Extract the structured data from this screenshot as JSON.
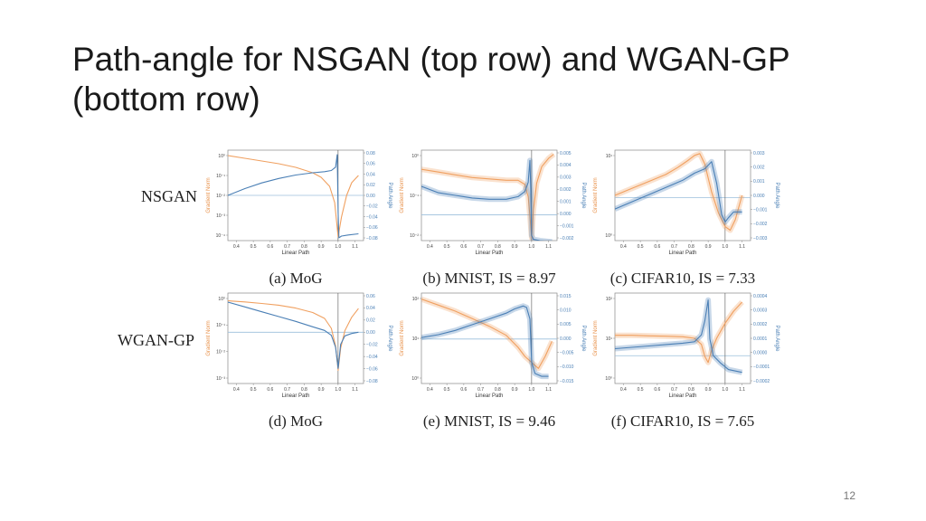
{
  "slide": {
    "title": "Path-angle for NSGAN (top row) and WGAN-GP (bottom row)",
    "page_number": "12"
  },
  "row_labels": [
    "NSGAN",
    "WGAN-GP"
  ],
  "colors": {
    "gradient_norm": "#f0a060",
    "path_angle": "#4a7fb5",
    "reference_line": "#9bbfdc"
  },
  "chart_data": [
    {
      "type": "line",
      "caption": "(a) MoG",
      "xlabel": "Linear Path",
      "ylabel_left": "Gradient Norm",
      "ylabel_right": "Path Angle",
      "xticks": [
        "0.4",
        "0.5",
        "0.6",
        "0.7",
        "0.8",
        "0.9",
        "1.0",
        "1.1"
      ],
      "yticks_left": [
        "10⁰",
        "10⁻¹",
        "10⁻²",
        "10⁻³",
        "10⁻⁴"
      ],
      "yticks_right": [
        "0.08",
        "0.06",
        "0.04",
        "0.02",
        "0.00",
        "−0.02",
        "−0.04",
        "−0.06",
        "−0.08"
      ],
      "xlim": [
        0.35,
        1.15
      ],
      "ylim_left": [
        -4.5,
        0.5
      ],
      "ylim_right": [
        -0.08,
        0.08
      ],
      "vline": 1.0,
      "hline_right": 0.0,
      "band": false,
      "series": [
        {
          "axis": "left",
          "x": [
            0.35,
            0.45,
            0.55,
            0.65,
            0.75,
            0.85,
            0.9,
            0.95,
            0.98,
            1.0,
            1.02,
            1.05,
            1.08,
            1.12
          ],
          "y": [
            0.2,
            0.05,
            -0.1,
            -0.25,
            -0.45,
            -0.75,
            -1.0,
            -1.5,
            -2.4,
            -4.3,
            -3.2,
            -2.0,
            -1.3,
            -0.9
          ]
        },
        {
          "axis": "right",
          "x": [
            0.35,
            0.45,
            0.55,
            0.65,
            0.75,
            0.85,
            0.92,
            0.96,
            0.985,
            0.995,
            1.0,
            1.005,
            1.02,
            1.06,
            1.12
          ],
          "y": [
            0.0,
            0.012,
            0.022,
            0.03,
            0.036,
            0.04,
            0.042,
            0.044,
            0.05,
            0.072,
            -0.03,
            -0.075,
            -0.072,
            -0.07,
            -0.068
          ]
        }
      ]
    },
    {
      "type": "line",
      "caption": "(b) MNIST, IS = 8.97",
      "xlabel": "Linear Path",
      "ylabel_left": "Gradient Norm",
      "ylabel_right": "Path Angle",
      "xticks": [
        "0.4",
        "0.5",
        "0.6",
        "0.7",
        "0.8",
        "0.9",
        "1.0",
        "1.1"
      ],
      "yticks_left": [
        "10⁰",
        "10⁻¹",
        "10⁻²"
      ],
      "yticks_right": [
        "0.005",
        "0.004",
        "0.003",
        "0.002",
        "0.001",
        "0.000",
        "−0.001",
        "−0.002"
      ],
      "xlim": [
        0.35,
        1.15
      ],
      "ylim_left": [
        -2.5,
        0.8
      ],
      "ylim_right": [
        -0.002,
        0.005
      ],
      "vline": 1.0,
      "hline_right": 0.0,
      "band": true,
      "series": [
        {
          "axis": "left",
          "x": [
            0.35,
            0.45,
            0.55,
            0.65,
            0.75,
            0.85,
            0.92,
            0.96,
            0.98,
            0.99,
            1.0,
            1.01,
            1.03,
            1.06,
            1.1,
            1.13
          ],
          "y": [
            0.1,
            0.0,
            -0.1,
            -0.2,
            -0.25,
            -0.3,
            -0.3,
            -0.45,
            -0.9,
            -1.6,
            -2.4,
            -1.4,
            -0.4,
            0.2,
            0.5,
            0.65
          ]
        },
        {
          "axis": "right",
          "x": [
            0.35,
            0.45,
            0.55,
            0.65,
            0.75,
            0.85,
            0.92,
            0.96,
            0.98,
            0.99,
            0.995,
            1.0,
            1.01,
            1.05,
            1.12
          ],
          "y": [
            0.0022,
            0.0017,
            0.0015,
            0.0013,
            0.0012,
            0.0012,
            0.0014,
            0.0018,
            0.0025,
            0.0042,
            0.002,
            -0.0016,
            -0.0019,
            -0.002,
            -0.0021
          ]
        }
      ]
    },
    {
      "type": "line",
      "caption": "(c) CIFAR10, IS = 7.33",
      "xlabel": "Linear Path",
      "ylabel_left": "Gradient Norm",
      "ylabel_right": "Path Angle",
      "xticks": [
        "0.4",
        "0.5",
        "0.6",
        "0.7",
        "0.8",
        "0.9",
        "1.0",
        "1.1"
      ],
      "yticks_left": [
        "10¹",
        "10⁰"
      ],
      "yticks_right": [
        "0.003",
        "0.002",
        "0.001",
        "0.000",
        "−0.001",
        "−0.002",
        "−0.003"
      ],
      "xlim": [
        0.35,
        1.15
      ],
      "ylim_left": [
        -1.2,
        1.4
      ],
      "ylim_right": [
        -0.003,
        0.0033
      ],
      "vline": 1.0,
      "hline_right": 0.0,
      "band": true,
      "series": [
        {
          "axis": "left",
          "x": [
            0.35,
            0.45,
            0.55,
            0.65,
            0.72,
            0.78,
            0.82,
            0.85,
            0.88,
            0.92,
            0.96,
            1.0,
            1.03,
            1.06,
            1.1
          ],
          "y": [
            0.1,
            0.3,
            0.5,
            0.7,
            0.9,
            1.1,
            1.25,
            1.3,
            1.0,
            0.2,
            -0.4,
            -0.8,
            -0.9,
            -0.6,
            0.1
          ]
        },
        {
          "axis": "right",
          "x": [
            0.35,
            0.45,
            0.55,
            0.65,
            0.75,
            0.82,
            0.88,
            0.92,
            0.95,
            0.98,
            1.0,
            1.02,
            1.05,
            1.1
          ],
          "y": [
            -0.0008,
            -0.0003,
            0.0002,
            0.0007,
            0.0012,
            0.0017,
            0.002,
            0.0025,
            0.001,
            -0.0012,
            -0.0017,
            -0.0014,
            -0.001,
            -0.001
          ]
        }
      ]
    },
    {
      "type": "line",
      "caption": "(d) MoG",
      "xlabel": "Linear Path",
      "ylabel_left": "Gradient Norm",
      "ylabel_right": "Path Angle",
      "xticks": [
        "0.4",
        "0.5",
        "0.6",
        "0.7",
        "0.8",
        "0.9",
        "1.0",
        "1.1"
      ],
      "yticks_left": [
        "10⁰",
        "10⁻¹",
        "10⁻²",
        "10⁻³"
      ],
      "yticks_right": [
        "0.06",
        "0.04",
        "0.02",
        "0.00",
        "−0.02",
        "−0.04",
        "−0.06",
        "−0.08"
      ],
      "xlim": [
        0.35,
        1.15
      ],
      "ylim_left": [
        -3.6,
        0.5
      ],
      "ylim_right": [
        -0.085,
        0.065
      ],
      "vline": 1.0,
      "hline_right": 0.0,
      "band": false,
      "series": [
        {
          "axis": "left",
          "x": [
            0.35,
            0.45,
            0.55,
            0.65,
            0.75,
            0.85,
            0.92,
            0.96,
            0.985,
            1.0,
            1.015,
            1.04,
            1.08,
            1.12
          ],
          "y": [
            0.15,
            0.1,
            0.03,
            -0.05,
            -0.18,
            -0.38,
            -0.65,
            -1.1,
            -1.9,
            -3.0,
            -2.0,
            -1.2,
            -0.6,
            -0.2
          ]
        },
        {
          "axis": "right",
          "x": [
            0.35,
            0.45,
            0.55,
            0.65,
            0.75,
            0.85,
            0.92,
            0.96,
            0.985,
            1.0,
            1.015,
            1.04,
            1.08,
            1.12
          ],
          "y": [
            0.05,
            0.042,
            0.034,
            0.026,
            0.018,
            0.009,
            0.003,
            -0.005,
            -0.025,
            -0.06,
            -0.02,
            -0.006,
            -0.002,
            0.0
          ]
        }
      ]
    },
    {
      "type": "line",
      "caption": "(e) MNIST, IS = 9.46",
      "xlabel": "Linear Path",
      "ylabel_left": "Gradient Norm",
      "ylabel_right": "Path Angle",
      "xticks": [
        "0.4",
        "0.5",
        "0.6",
        "0.7",
        "0.8",
        "0.9",
        "1.0",
        "1.1"
      ],
      "yticks_left": [
        "10²",
        "10¹",
        "10⁰"
      ],
      "yticks_right": [
        "0.015",
        "0.010",
        "0.005",
        "0.000",
        "−0.005",
        "−0.010",
        "−0.015"
      ],
      "xlim": [
        0.35,
        1.15
      ],
      "ylim_left": [
        -0.6,
        2.4
      ],
      "ylim_right": [
        -0.0155,
        0.016
      ],
      "vline": 1.0,
      "hline_right": 0.0,
      "band": true,
      "series": [
        {
          "axis": "left",
          "x": [
            0.35,
            0.45,
            0.55,
            0.65,
            0.75,
            0.85,
            0.92,
            0.96,
            1.0,
            1.04,
            1.08,
            1.12
          ],
          "y": [
            2.2,
            2.0,
            1.8,
            1.55,
            1.3,
            1.0,
            0.6,
            0.3,
            0.1,
            -0.1,
            0.3,
            0.8
          ]
        },
        {
          "axis": "right",
          "x": [
            0.35,
            0.45,
            0.55,
            0.65,
            0.75,
            0.85,
            0.9,
            0.95,
            0.97,
            0.99,
            1.0,
            1.02,
            1.06,
            1.1
          ],
          "y": [
            0.0005,
            0.0015,
            0.003,
            0.005,
            0.007,
            0.009,
            0.0105,
            0.0115,
            0.011,
            0.007,
            -0.008,
            -0.012,
            -0.013,
            -0.013
          ]
        }
      ]
    },
    {
      "type": "line",
      "caption": "(f) CIFAR10, IS = 7.65",
      "xlabel": "Linear Path",
      "ylabel_left": "Gradient Norm",
      "ylabel_right": "Path Angle",
      "xticks": [
        "0.4",
        "0.5",
        "0.6",
        "0.7",
        "0.8",
        "0.9",
        "1.0",
        "1.1"
      ],
      "yticks_left": [
        "10²",
        "10¹",
        "10⁰"
      ],
      "yticks_right": [
        "0.0004",
        "0.0003",
        "0.0002",
        "0.0001",
        "0.0000",
        "−0.0001",
        "−0.0002"
      ],
      "xlim": [
        0.35,
        1.15
      ],
      "ylim_left": [
        -0.6,
        2.4
      ],
      "ylim_right": [
        -0.0002,
        0.00045
      ],
      "vline": 1.0,
      "hline_right": 0.0,
      "band": true,
      "series": [
        {
          "axis": "left",
          "x": [
            0.35,
            0.45,
            0.55,
            0.65,
            0.75,
            0.82,
            0.86,
            0.88,
            0.9,
            0.92,
            0.95,
            1.0,
            1.05,
            1.1
          ],
          "y": [
            1.0,
            1.0,
            0.98,
            0.97,
            0.95,
            0.9,
            0.7,
            0.3,
            0.1,
            0.5,
            0.9,
            1.4,
            1.8,
            2.1
          ]
        },
        {
          "axis": "right",
          "x": [
            0.35,
            0.45,
            0.55,
            0.65,
            0.75,
            0.82,
            0.86,
            0.88,
            0.9,
            0.91,
            0.93,
            0.97,
            1.02,
            1.1
          ],
          "y": [
            5e-05,
            6e-05,
            7e-05,
            8e-05,
            9e-05,
            0.0001,
            0.00015,
            0.00025,
            0.0004,
            0.00012,
            0.0,
            -5e-05,
            -0.0001,
            -0.00012
          ]
        }
      ]
    }
  ]
}
